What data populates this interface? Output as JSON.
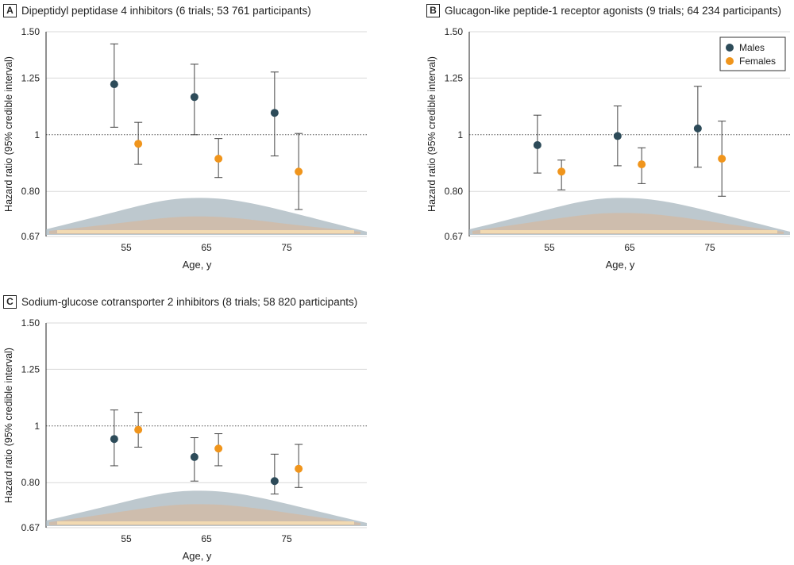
{
  "legend": {
    "males_label": "Males",
    "females_label": "Females",
    "males_color": "#2d4b59",
    "females_color": "#f0951c"
  },
  "chart_data": [
    {
      "type": "scatter",
      "panel": "A",
      "title": "Dipeptidyl peptidase 4 inhibitors (6 trials; 53 761 participants)",
      "xlabel": "Age, y",
      "ylabel": "Hazard ratio (95% credible interval)",
      "yscale": "log",
      "ylim": [
        0.67,
        1.5
      ],
      "xlim": [
        45,
        85
      ],
      "yticks": [
        0.67,
        0.8,
        1,
        1.25,
        1.5
      ],
      "ytick_labels": [
        "0.67",
        "0.80",
        "1",
        "1.25",
        "1.50"
      ],
      "xticks": [
        55,
        65,
        75
      ],
      "xtick_labels": [
        "55",
        "65",
        "75"
      ],
      "reference_line": 1,
      "series": [
        {
          "name": "Males",
          "x": [
            53.5,
            63.5,
            73.5
          ],
          "y": [
            1.22,
            1.16,
            1.09
          ],
          "lower": [
            1.03,
            1.0,
            0.92
          ],
          "upper": [
            1.43,
            1.32,
            1.28
          ]
        },
        {
          "name": "Females",
          "x": [
            56.5,
            66.5,
            76.5
          ],
          "y": [
            0.965,
            0.91,
            0.865
          ],
          "lower": [
            0.89,
            0.845,
            0.745
          ],
          "upper": [
            1.05,
            0.985,
            1.005
          ]
        }
      ],
      "distribution": {
        "description": "age distribution of participants",
        "males_peak": 0.78,
        "females_peak": 0.725
      }
    },
    {
      "type": "scatter",
      "panel": "B",
      "title": "Glucagon-like peptide-1 receptor agonists (9 trials; 64 234 participants)",
      "xlabel": "Age, y",
      "ylabel": "Hazard ratio (95% credible interval)",
      "yscale": "log",
      "ylim": [
        0.67,
        1.5
      ],
      "xlim": [
        45,
        85
      ],
      "yticks": [
        0.67,
        0.8,
        1,
        1.25,
        1.5
      ],
      "ytick_labels": [
        "0.67",
        "0.80",
        "1",
        "1.25",
        "1.50"
      ],
      "xticks": [
        55,
        65,
        75
      ],
      "xtick_labels": [
        "55",
        "65",
        "75"
      ],
      "reference_line": 1,
      "legend": true,
      "series": [
        {
          "name": "Males",
          "x": [
            53.5,
            63.5,
            73.5
          ],
          "y": [
            0.96,
            0.995,
            1.025
          ],
          "lower": [
            0.86,
            0.885,
            0.88
          ],
          "upper": [
            1.08,
            1.12,
            1.21
          ]
        },
        {
          "name": "Females",
          "x": [
            56.5,
            66.5,
            76.5
          ],
          "y": [
            0.865,
            0.89,
            0.91
          ],
          "lower": [
            0.805,
            0.825,
            0.785
          ],
          "upper": [
            0.905,
            0.95,
            1.055
          ]
        }
      ],
      "distribution": {
        "description": "age distribution of participants",
        "males_peak": 0.78,
        "females_peak": 0.735
      }
    },
    {
      "type": "scatter",
      "panel": "C",
      "title": "Sodium-glucose cotransporter 2 inhibitors (8 trials; 58 820 participants)",
      "xlabel": "Age, y",
      "ylabel": "Hazard ratio (95% credible interval)",
      "yscale": "log",
      "ylim": [
        0.67,
        1.5
      ],
      "xlim": [
        45,
        85
      ],
      "yticks": [
        0.67,
        0.8,
        1,
        1.25,
        1.5
      ],
      "ytick_labels": [
        "0.67",
        "0.80",
        "1",
        "1.25",
        "1.50"
      ],
      "xticks": [
        55,
        65,
        75
      ],
      "xtick_labels": [
        "55",
        "65",
        "75"
      ],
      "reference_line": 1,
      "series": [
        {
          "name": "Males",
          "x": [
            53.5,
            63.5,
            73.5
          ],
          "y": [
            0.95,
            0.885,
            0.805
          ],
          "lower": [
            0.855,
            0.805,
            0.765
          ],
          "upper": [
            1.065,
            0.955,
            0.895
          ]
        },
        {
          "name": "Females",
          "x": [
            56.5,
            66.5,
            76.5
          ],
          "y": [
            0.985,
            0.915,
            0.845
          ],
          "lower": [
            0.92,
            0.855,
            0.785
          ],
          "upper": [
            1.055,
            0.97,
            0.93
          ]
        }
      ],
      "distribution": {
        "description": "age distribution of participants",
        "males_peak": 0.775,
        "females_peak": 0.735
      }
    }
  ]
}
